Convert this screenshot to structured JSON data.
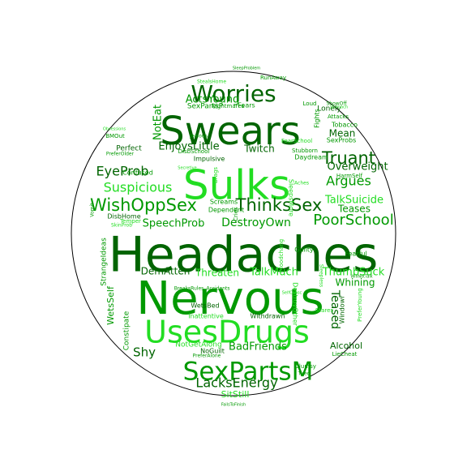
{
  "cloud": {
    "colors": {
      "dark": "#006400",
      "mid": "#009900",
      "bright": "#22dd22",
      "outline": "#000000"
    },
    "words": [
      {
        "text": "Headaches",
        "color": "dark"
      },
      {
        "text": "Nervous",
        "color": "mid"
      },
      {
        "text": "Sulks",
        "color": "bright"
      },
      {
        "text": "Swears",
        "color": "dark"
      },
      {
        "text": "UsesDrugs",
        "color": "bright"
      },
      {
        "text": "SexPartsM",
        "color": "mid"
      },
      {
        "text": "Worries",
        "color": "dark"
      },
      {
        "text": "WishOppSex",
        "color": "mid"
      },
      {
        "text": "ThinksSex",
        "color": "dark"
      },
      {
        "text": "Truant",
        "color": "dark"
      },
      {
        "text": "PoorSchool",
        "color": "mid"
      },
      {
        "text": "LacksEnergy",
        "color": "dark"
      },
      {
        "text": "Suspicious",
        "color": "bright"
      },
      {
        "text": "EyeProb",
        "color": "dark"
      },
      {
        "text": "Argues",
        "color": "mid"
      },
      {
        "text": "DestroyOwn",
        "color": "mid"
      },
      {
        "text": "TalkSuicide",
        "color": "bright"
      },
      {
        "text": "SpeechProb",
        "color": "mid"
      },
      {
        "text": "Overweight",
        "color": "dark"
      },
      {
        "text": "ThumbSuck",
        "color": "bright"
      },
      {
        "text": "TalkMuch",
        "color": "bright"
      },
      {
        "text": "BadFriends",
        "color": "mid"
      },
      {
        "text": "EnjoysLittle",
        "color": "dark"
      },
      {
        "text": "ActsYoung",
        "color": "mid"
      },
      {
        "text": "Twitch",
        "color": "dark"
      },
      {
        "text": "Teases",
        "color": "mid"
      },
      {
        "text": "Whining",
        "color": "mid"
      },
      {
        "text": "Mean",
        "color": "dark"
      },
      {
        "text": "Shy",
        "color": "dark"
      },
      {
        "text": "Teased",
        "color": "dark"
      },
      {
        "text": "DemAtten",
        "color": "dark"
      },
      {
        "text": "Threaten",
        "color": "bright"
      },
      {
        "text": "SitStill",
        "color": "bright"
      },
      {
        "text": "WetsSelf",
        "color": "mid"
      },
      {
        "text": "NotEat",
        "color": "mid"
      },
      {
        "text": "Alcohol",
        "color": "dark"
      },
      {
        "text": "Perfect",
        "color": "dark"
      },
      {
        "text": "Lonely",
        "color": "dark"
      },
      {
        "text": "SexPartsP",
        "color": "mid"
      },
      {
        "text": "Fears",
        "color": "mid"
      },
      {
        "text": "Impulsive",
        "color": "dark"
      },
      {
        "text": "Screams",
        "color": "mid"
      },
      {
        "text": "Dependent",
        "color": "mid"
      },
      {
        "text": "Inattentive",
        "color": "bright"
      },
      {
        "text": "WetsBed",
        "color": "dark"
      },
      {
        "text": "Withdrawn",
        "color": "dark"
      },
      {
        "text": "NotGetAlong",
        "color": "bright"
      },
      {
        "text": "Confused",
        "color": "mid"
      },
      {
        "text": "DisbSchool",
        "color": "mid"
      },
      {
        "text": "DisbHome",
        "color": "dark"
      },
      {
        "text": "Temper",
        "color": "bright"
      },
      {
        "text": "StrangeIdeas",
        "color": "mid"
      },
      {
        "text": "Constipate",
        "color": "mid"
      },
      {
        "text": "NoGuilt",
        "color": "dark"
      },
      {
        "text": "Guilty",
        "color": "mid"
      },
      {
        "text": "Fearful",
        "color": "mid"
      },
      {
        "text": "Stares",
        "color": "bright"
      },
      {
        "text": "Moodchang",
        "color": "bright"
      },
      {
        "text": "SleepsMore",
        "color": "bright"
      },
      {
        "text": "Brags",
        "color": "bright"
      },
      {
        "text": "Cries",
        "color": "mid"
      },
      {
        "text": "Fights",
        "color": "mid"
      },
      {
        "text": "Daydream",
        "color": "mid"
      },
      {
        "text": "Stubborn",
        "color": "mid"
      },
      {
        "text": "FearSchool",
        "color": "bright"
      },
      {
        "text": "HarmSelf",
        "color": "mid"
      },
      {
        "text": "Tobacco",
        "color": "mid"
      },
      {
        "text": "SexProbs",
        "color": "mid"
      },
      {
        "text": "Attacks",
        "color": "mid"
      },
      {
        "text": "ShowOff",
        "color": "mid"
      },
      {
        "text": "Loud",
        "color": "mid"
      },
      {
        "text": "RunAway",
        "color": "mid"
      },
      {
        "text": "SleepProblem",
        "color": "mid"
      },
      {
        "text": "StealsHome",
        "color": "bright"
      },
      {
        "text": "Nightmares",
        "color": "mid"
      },
      {
        "text": "BMOut",
        "color": "mid"
      },
      {
        "text": "PreferOlder",
        "color": "mid"
      },
      {
        "text": "SkinProb",
        "color": "bright"
      },
      {
        "text": "Accidents",
        "color": "mid"
      },
      {
        "text": "BreaksRules",
        "color": "mid"
      },
      {
        "text": "Vomit",
        "color": "mid"
      },
      {
        "text": "PreferAlone",
        "color": "mid"
      },
      {
        "text": "LieCheat",
        "color": "mid"
      },
      {
        "text": "Clumsy",
        "color": "mid"
      },
      {
        "text": "Tired",
        "color": "mid"
      },
      {
        "text": "FailsToFinish",
        "color": "mid"
      },
      {
        "text": "PreferYoung",
        "color": "bright"
      },
      {
        "text": "Windowr",
        "color": "dark"
      },
      {
        "text": "WillNotTalk",
        "color": "mid"
      },
      {
        "text": "DestroyOther",
        "color": "bright"
      },
      {
        "text": "Sleepless",
        "color": "bright"
      },
      {
        "text": "Aches",
        "color": "bright"
      },
      {
        "text": "Stomach",
        "color": "bright"
      },
      {
        "text": "SelfConsc",
        "color": "bright"
      },
      {
        "text": "Secretive",
        "color": "bright"
      },
      {
        "text": "Obsessions",
        "color": "bright"
      },
      {
        "text": "Jealous",
        "color": "mid"
      }
    ]
  }
}
